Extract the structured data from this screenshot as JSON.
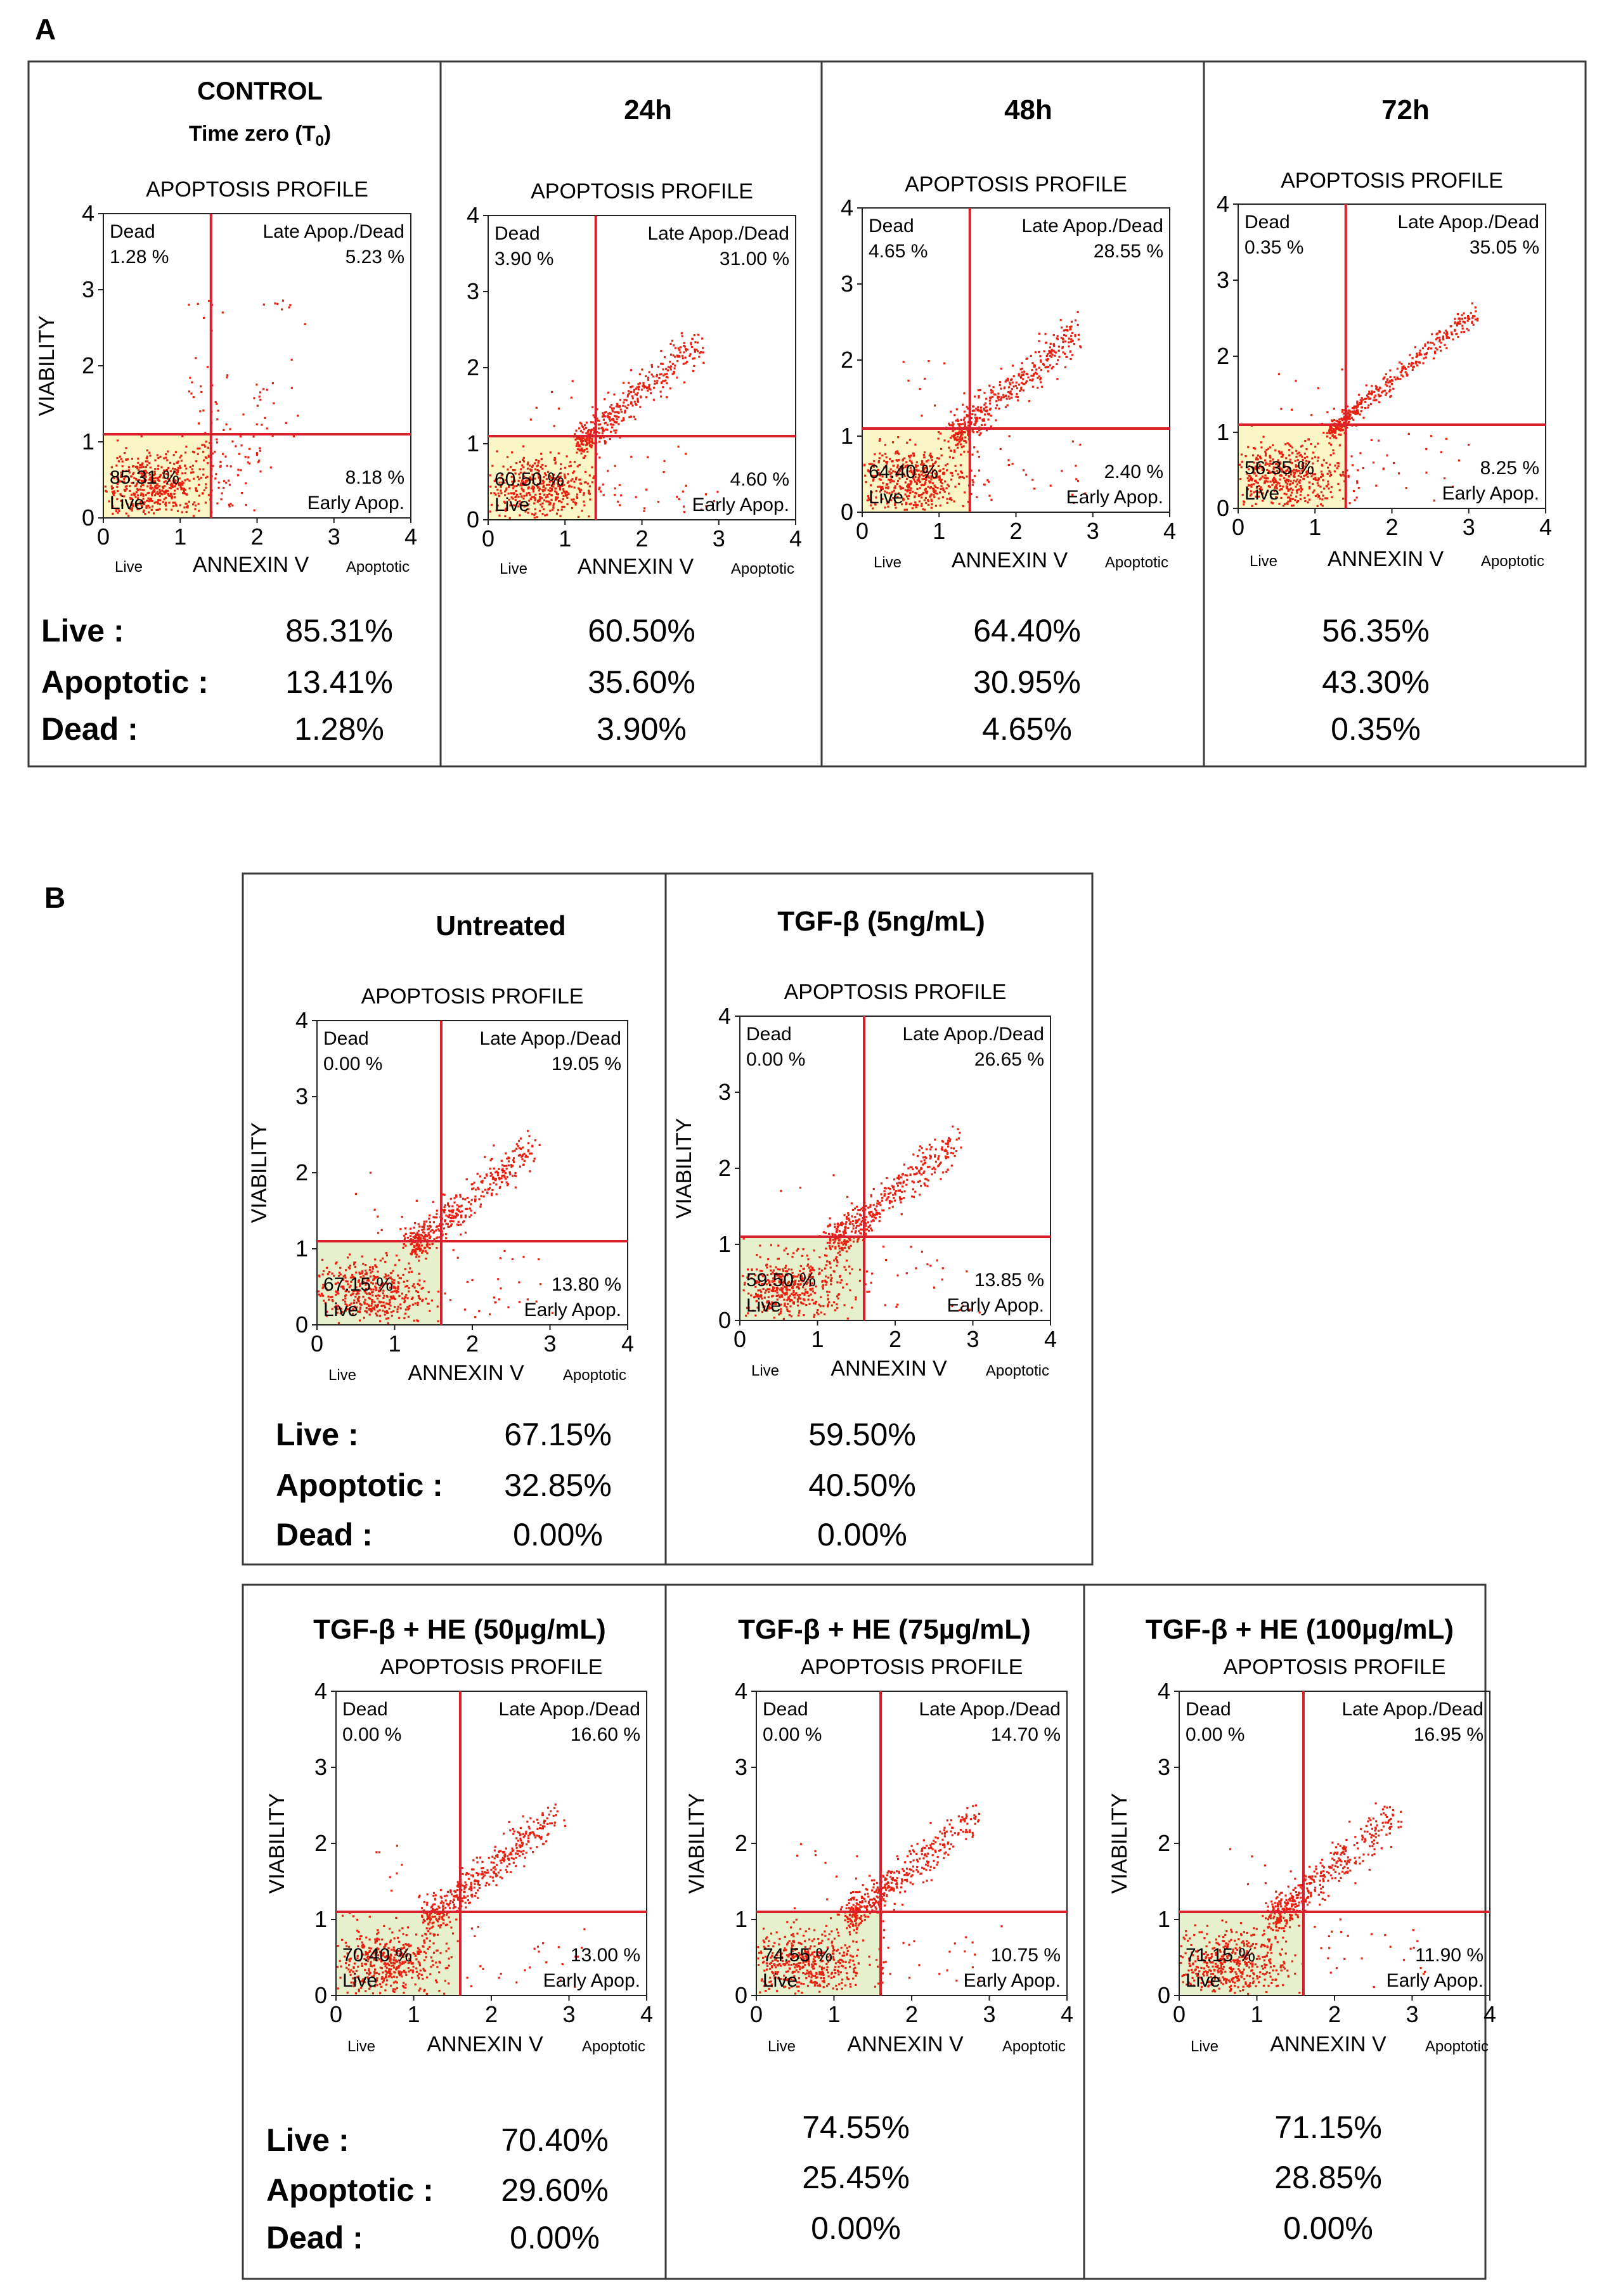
{
  "panels": {
    "a": {
      "letter": "A"
    },
    "b": {
      "letter": "B"
    }
  },
  "row_labels": {
    "live": "Live :",
    "apoptotic": "Apoptotic :",
    "dead": "Dead :"
  },
  "plot_text": {
    "title": "APOPTOSIS PROFILE",
    "xlabel": "ANNEXIN V",
    "ylabel": "VIABILITY",
    "x_left_hint": "Live",
    "x_right_hint": "Apoptotic",
    "q_dead": "Dead",
    "q_late": "Late Apop./Dead",
    "q_live": "Live",
    "q_early": "Early Apop.",
    "ticks": [
      "0",
      "1",
      "2",
      "3",
      "4"
    ]
  },
  "colors": {
    "dots": "#e8200f",
    "gates": "#d9202c",
    "live_gate_fill_a": "#fbf6c6",
    "live_gate_fill_b": "#e7f0cc"
  },
  "chart_data": [
    {
      "type": "scatter",
      "panel": "A",
      "title_line1": "CONTROL",
      "title_line2": "Time zero (T",
      "title_sub": "0",
      "title_close": ")",
      "quadrants": {
        "dead": "1.28 %",
        "late": "5.23 %",
        "live": "85.31 %",
        "early": "8.18 %"
      },
      "summary": {
        "live": "85.31%",
        "apoptotic": "13.41%",
        "dead": "1.28%"
      },
      "xlim": [
        0,
        4
      ],
      "ylim": [
        0,
        4
      ],
      "gates": {
        "x": 1.4,
        "y": 1.1
      },
      "cloud": "control"
    },
    {
      "type": "scatter",
      "panel": "A",
      "title_line1": "24h",
      "quadrants": {
        "dead": "3.90 %",
        "late": "31.00 %",
        "live": "60.50 %",
        "early": "4.60 %"
      },
      "summary": {
        "live": "60.50%",
        "apoptotic": "35.60%",
        "dead": "3.90%"
      },
      "xlim": [
        0,
        4
      ],
      "ylim": [
        0,
        4
      ],
      "gates": {
        "x": 1.4,
        "y": 1.1
      },
      "cloud": "diagonal"
    },
    {
      "type": "scatter",
      "panel": "A",
      "title_line1": "48h",
      "quadrants": {
        "dead": "4.65 %",
        "late": "28.55 %",
        "live": "64.40 %",
        "early": "2.40 %"
      },
      "summary": {
        "live": "64.40%",
        "apoptotic": "30.95%",
        "dead": "4.65%"
      },
      "xlim": [
        0,
        4
      ],
      "ylim": [
        0,
        4
      ],
      "gates": {
        "x": 1.4,
        "y": 1.1
      },
      "cloud": "diagonal"
    },
    {
      "type": "scatter",
      "panel": "A",
      "title_line1": "72h",
      "quadrants": {
        "dead": "0.35 %",
        "late": "35.05 %",
        "live": "56.35 %",
        "early": "8.25 %"
      },
      "summary": {
        "live": "56.35%",
        "apoptotic": "43.30%",
        "dead": "0.35%"
      },
      "xlim": [
        0,
        4
      ],
      "ylim": [
        0,
        4
      ],
      "gates": {
        "x": 1.4,
        "y": 1.1
      },
      "cloud": "tight"
    },
    {
      "type": "scatter",
      "panel": "B",
      "title_line1": "Untreated",
      "quadrants": {
        "dead": "0.00 %",
        "late": "19.05 %",
        "live": "67.15 %",
        "early": "13.80 %"
      },
      "summary": {
        "live": "67.15%",
        "apoptotic": "32.85%",
        "dead": "0.00%"
      },
      "xlim": [
        0,
        4
      ],
      "ylim": [
        0,
        4
      ],
      "gates": {
        "x": 1.6,
        "y": 1.1
      },
      "cloud": "diagonal"
    },
    {
      "type": "scatter",
      "panel": "B",
      "title_line1": "TGF-β (5ng/mL)",
      "quadrants": {
        "dead": "0.00 %",
        "late": "26.65 %",
        "live": "59.50 %",
        "early": "13.85 %"
      },
      "summary": {
        "live": "59.50%",
        "apoptotic": "40.50%",
        "dead": "0.00%"
      },
      "xlim": [
        0,
        4
      ],
      "ylim": [
        0,
        4
      ],
      "gates": {
        "x": 1.6,
        "y": 1.1
      },
      "cloud": "diagonal"
    },
    {
      "type": "scatter",
      "panel": "B",
      "title_line1": "TGF-β + HE (50µg/mL)",
      "quadrants": {
        "dead": "0.00 %",
        "late": "16.60 %",
        "live": "70.40 %",
        "early": "13.00 %"
      },
      "summary": {
        "live": "70.40%",
        "apoptotic": "29.60%",
        "dead": "0.00%"
      },
      "xlim": [
        0,
        4
      ],
      "ylim": [
        0,
        4
      ],
      "gates": {
        "x": 1.6,
        "y": 1.1
      },
      "cloud": "diagonal"
    },
    {
      "type": "scatter",
      "panel": "B",
      "title_line1": "TGF-β + HE (75µg/mL)",
      "quadrants": {
        "dead": "0.00 %",
        "late": "14.70 %",
        "live": "74.55 %",
        "early": "10.75 %"
      },
      "summary": {
        "live": "74.55%",
        "apoptotic": "25.45%",
        "dead": "0.00%"
      },
      "xlim": [
        0,
        4
      ],
      "ylim": [
        0,
        4
      ],
      "gates": {
        "x": 1.6,
        "y": 1.1
      },
      "cloud": "diagonal"
    },
    {
      "type": "scatter",
      "panel": "B",
      "title_line1": "TGF-β + HE (100µg/mL)",
      "quadrants": {
        "dead": "0.00 %",
        "late": "16.95 %",
        "live": "71.15 %",
        "early": "11.90 %"
      },
      "summary": {
        "live": "71.15%",
        "apoptotic": "28.85%",
        "dead": "0.00%"
      },
      "xlim": [
        0,
        4
      ],
      "ylim": [
        0,
        4
      ],
      "gates": {
        "x": 1.6,
        "y": 1.1
      },
      "cloud": "diagonal"
    }
  ]
}
